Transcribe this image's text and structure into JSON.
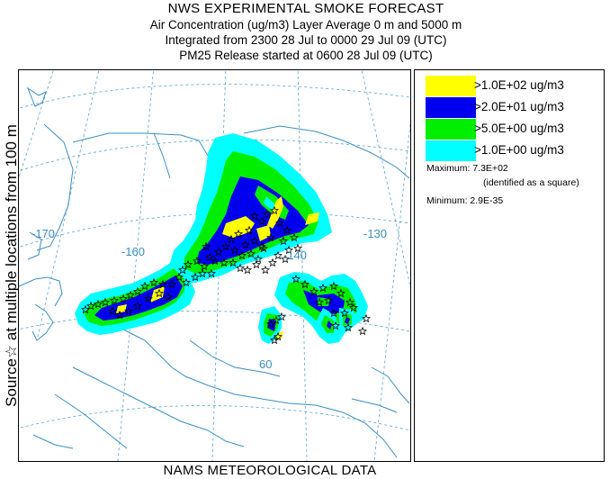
{
  "header": {
    "title": "NWS EXPERIMENTAL SMOKE FORECAST",
    "line2": "Air Concentration (ug/m3) Layer Average    0 m and  5000 m",
    "line3": "Integrated from 2300 28 Jul to 0000 29 Jul 09 (UTC)",
    "line4": "PM25 Release started at 0600 28 Jul 09 (UTC)"
  },
  "side_label": "Source☆  at multiple locations  from   100 m",
  "map": {
    "longitude_labels": [
      "-170",
      "-160",
      "-140",
      "-130"
    ],
    "latitude_labels": [
      "60"
    ],
    "colors": {
      "coast": "#3a8fc4",
      "graticule": "#5aa2d2",
      "level_1": "#00ffff",
      "level_2": "#00ee00",
      "level_3": "#0000ee",
      "level_4": "#ffff00"
    },
    "source_marker_icon": "star-icon"
  },
  "legend": {
    "items": [
      {
        "label": ">1.0E+02 ug/m3",
        "color": "#ffff00"
      },
      {
        "label": ">2.0E+01 ug/m3",
        "color": "#0000ee"
      },
      {
        "label": ">5.0E+00 ug/m3",
        "color": "#00ee00"
      },
      {
        "label": ">1.0E+00 ug/m3",
        "color": "#00ffff"
      }
    ],
    "maximum_label": "Maximum: 7.3E+02",
    "maximum_note": "(identified as a square)",
    "minimum_label": "Minimum: 2.9E-35"
  },
  "footer": "NAMS METEOROLOGICAL DATA"
}
